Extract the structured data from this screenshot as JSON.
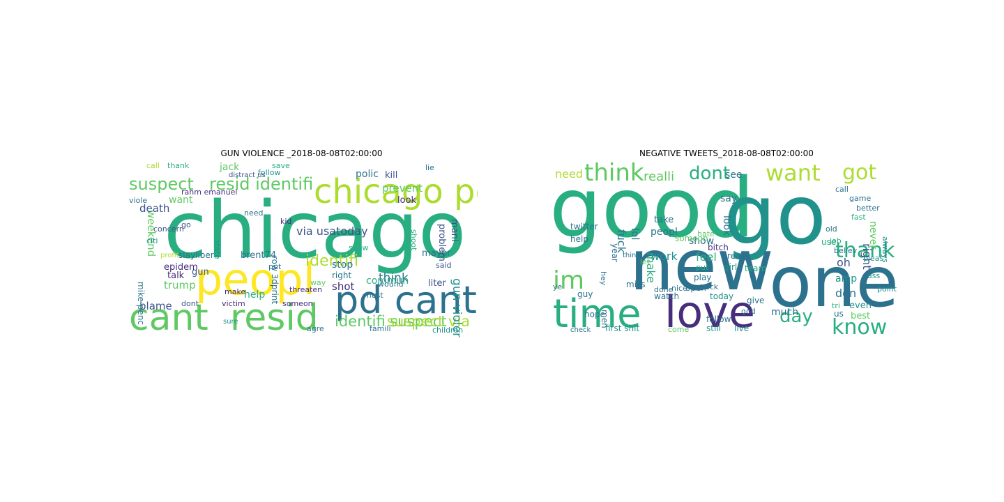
{
  "figure": {
    "panels": [
      {
        "title": "GUN VIOLENCE _2018-08-08T02:00:00",
        "words": [
          "chicago",
          "peopl",
          "cant",
          "resid",
          "chicago pd",
          "pd cant",
          "identifi",
          "suspect",
          "resid identifi",
          "identifi suspect",
          "suspect via",
          "via usatoday",
          "weekend",
          "death",
          "jack",
          "polic",
          "kill",
          "prevent",
          "think",
          "commun",
          "gun violenc",
          "stop",
          "shot",
          "right",
          "mayor",
          "liter",
          "problem",
          "mani",
          "blame",
          "trump",
          "talk",
          "epidem",
          "mike penc",
          "want",
          "help",
          "rahm emanuel",
          "slayliber",
          "brent74",
          "row 3dprint",
          "gun",
          "state",
          "victim",
          "dont",
          "make",
          "threaten",
          "someon",
          "agre",
          "famili",
          "children",
          "said",
          "wound",
          "kid",
          "need",
          "look",
          "shoot",
          "way",
          "put",
          "show",
          "must",
          "follow",
          "save",
          "thank",
          "call",
          "lie",
          "viole",
          "concern",
          "citi",
          "go",
          "profit",
          "sure",
          "distract us"
        ]
      },
      {
        "title": "NEGATIVE TWEETS_2018-08-08T02:00:00",
        "words": [
          "good",
          "go",
          "new",
          "one",
          "time",
          "love",
          "im",
          "think",
          "want",
          "got",
          "dont",
          "thank",
          "know",
          "day",
          "realli",
          "need",
          "see",
          "fuck",
          "lol",
          "work",
          "say",
          "look",
          "never",
          "right",
          "don",
          "amp",
          "oh",
          "peopl",
          "make",
          "feel",
          "show",
          "much",
          "even",
          "best",
          "always",
          "first shit",
          "still",
          "follow",
          "come",
          "live",
          "watch",
          "miss",
          "hope",
          "guy",
          "men",
          "check",
          "take",
          "year",
          "help",
          "let",
          "girl",
          "us",
          "game",
          "play",
          "bitch",
          "real",
          "open",
          "today",
          "back",
          "put",
          "give",
          "god",
          "tri",
          "use",
          "believ",
          "point",
          "ass",
          "pleas",
          "job",
          "old",
          "hate",
          "fast",
          "done",
          "thing",
          "twitter",
          "hey",
          "someon",
          "nice",
          "ye",
          "better",
          "call",
          "team",
          "well",
          "wanna"
        ]
      }
    ]
  },
  "colors": {
    "background": "#ffffff",
    "palette": [
      "#440154",
      "#472d7b",
      "#3b528b",
      "#2c728e",
      "#21918c",
      "#28ae80",
      "#5ec962",
      "#addc30",
      "#fde725"
    ]
  }
}
